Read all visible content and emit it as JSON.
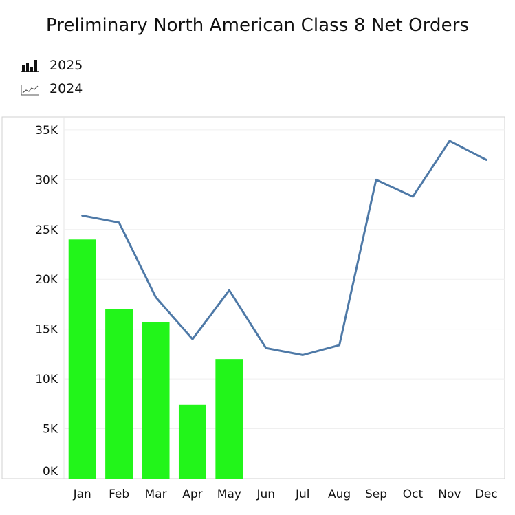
{
  "chart_data": {
    "type": "bar",
    "title": "Preliminary North American Class 8 Net Orders",
    "categories": [
      "Jan",
      "Feb",
      "Mar",
      "Apr",
      "May",
      "Jun",
      "Jul",
      "Aug",
      "Sep",
      "Oct",
      "Nov",
      "Dec"
    ],
    "series": [
      {
        "name": "2025",
        "kind": "bar",
        "color": "#22f51a",
        "values": [
          24000,
          17000,
          15700,
          7400,
          12000,
          null,
          null,
          null,
          null,
          null,
          null,
          null
        ]
      },
      {
        "name": "2024",
        "kind": "line",
        "color": "#4e79a7",
        "values": [
          26400,
          25700,
          18200,
          14000,
          18900,
          13100,
          12400,
          13400,
          30000,
          28300,
          33900,
          32000
        ]
      }
    ],
    "y_ticks": [
      0,
      5000,
      10000,
      15000,
      20000,
      25000,
      30000,
      35000
    ],
    "y_tick_labels": [
      "0K",
      "5K",
      "10K",
      "15K",
      "20K",
      "25K",
      "30K",
      "35K"
    ],
    "ylim": [
      0,
      35000
    ],
    "xlabel": "",
    "ylabel": "",
    "grid": true,
    "legend_position": "top-left"
  },
  "legend": {
    "items": [
      {
        "label": "2025",
        "icon": "bar-chart-icon"
      },
      {
        "label": "2024",
        "icon": "line-chart-icon"
      }
    ]
  }
}
